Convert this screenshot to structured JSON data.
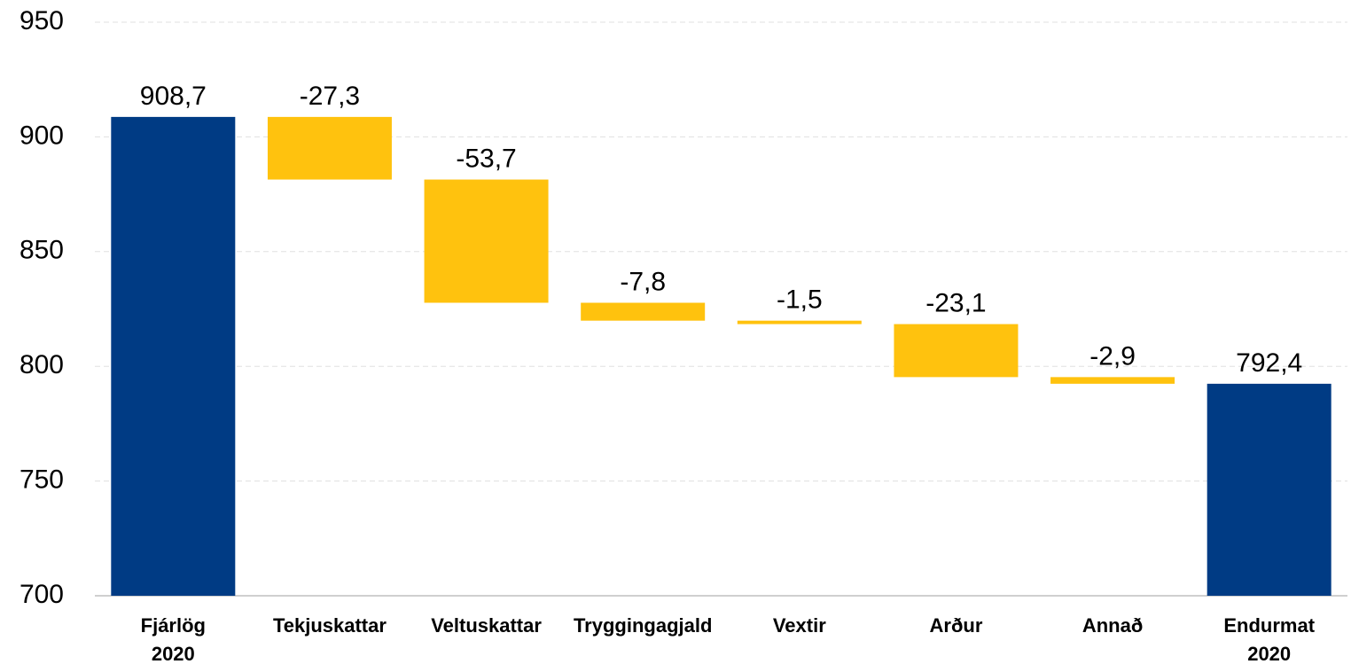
{
  "chart_data": {
    "type": "waterfall",
    "categories": [
      "Fjárlög 2020",
      "Tekjuskattar",
      "Veltuskattar",
      "Tryggingagjald",
      "Vextir",
      "Arður",
      "Annað",
      "Endurmat 2020"
    ],
    "values": [
      908.7,
      -27.3,
      -53.7,
      -7.8,
      -1.5,
      -23.1,
      -2.9,
      792.4
    ],
    "value_labels": [
      "908,7",
      "-27,3",
      "-53,7",
      "-7,8",
      "-1,5",
      "-23,1",
      "-2,9",
      "792,4"
    ],
    "measures": [
      "absolute",
      "relative",
      "relative",
      "relative",
      "relative",
      "relative",
      "relative",
      "absolute"
    ],
    "total_color": "#003b84",
    "change_color": "#ffc20e",
    "ylim": [
      700,
      950
    ],
    "yticks": [
      700,
      750,
      800,
      850,
      900,
      950
    ],
    "grid": true
  }
}
